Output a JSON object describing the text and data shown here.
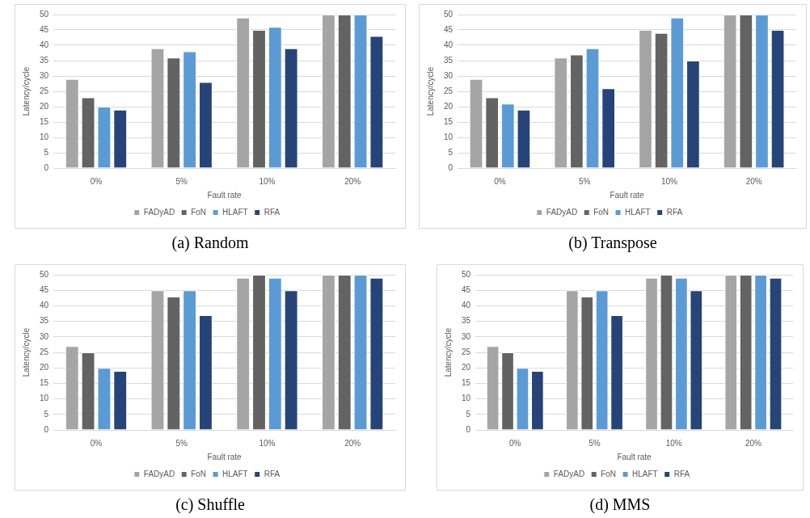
{
  "chart_data": [
    {
      "type": "bar",
      "xlabel": "Fault rate",
      "ylabel": "Latency/cycle",
      "categories": [
        "0%",
        "5%",
        "10%",
        "20%"
      ],
      "ylim": [
        0,
        50
      ],
      "yticks": [
        0,
        5,
        10,
        15,
        20,
        25,
        30,
        35,
        40,
        45,
        50
      ],
      "grid": "y",
      "legend": "bottom",
      "annotations": [
        "(a) Random"
      ],
      "series": [
        {
          "name": "FADyAD",
          "color": "#a5a5a5",
          "values": [
            29,
            39,
            49,
            50
          ]
        },
        {
          "name": "FoN",
          "color": "#636363",
          "values": [
            23,
            36,
            45,
            50
          ]
        },
        {
          "name": "HLAFT",
          "color": "#5b9bd5",
          "values": [
            20,
            38,
            46,
            50
          ]
        },
        {
          "name": "RFA",
          "color": "#264478",
          "values": [
            19,
            28,
            39,
            43
          ]
        }
      ]
    },
    {
      "type": "bar",
      "xlabel": "Fault rate",
      "ylabel": "Latency/cycle",
      "categories": [
        "0%",
        "5%",
        "10%",
        "20%"
      ],
      "ylim": [
        0,
        50
      ],
      "yticks": [
        0,
        5,
        10,
        15,
        20,
        25,
        30,
        35,
        40,
        45,
        50
      ],
      "grid": "y",
      "legend": "bottom",
      "annotations": [
        "(b) Transpose"
      ],
      "series": [
        {
          "name": "FADyAD",
          "color": "#a5a5a5",
          "values": [
            29,
            36,
            45,
            50
          ]
        },
        {
          "name": "FoN",
          "color": "#636363",
          "values": [
            23,
            37,
            44,
            50
          ]
        },
        {
          "name": "HLAFT",
          "color": "#5b9bd5",
          "values": [
            21,
            39,
            49,
            50
          ]
        },
        {
          "name": "RFA",
          "color": "#264478",
          "values": [
            19,
            26,
            35,
            45
          ]
        }
      ]
    },
    {
      "type": "bar",
      "xlabel": "Fault rate",
      "ylabel": "Latency/cycle",
      "categories": [
        "0%",
        "5%",
        "10%",
        "20%"
      ],
      "ylim": [
        0,
        50
      ],
      "yticks": [
        0,
        5,
        10,
        15,
        20,
        25,
        30,
        35,
        40,
        45,
        50
      ],
      "grid": "y",
      "legend": "bottom",
      "annotations": [
        "(c) Shuffle"
      ],
      "series": [
        {
          "name": "FADyAD",
          "color": "#a5a5a5",
          "values": [
            27,
            45,
            49,
            50
          ]
        },
        {
          "name": "FoN",
          "color": "#636363",
          "values": [
            25,
            43,
            50,
            50
          ]
        },
        {
          "name": "HLAFT",
          "color": "#5b9bd5",
          "values": [
            20,
            45,
            49,
            50
          ]
        },
        {
          "name": "RFA",
          "color": "#264478",
          "values": [
            19,
            37,
            45,
            49
          ]
        }
      ]
    },
    {
      "type": "bar",
      "xlabel": "Fault rate",
      "ylabel": "Latency/cycle",
      "categories": [
        "0%",
        "5%",
        "10%",
        "20%"
      ],
      "ylim": [
        0,
        50
      ],
      "yticks": [
        0,
        5,
        10,
        15,
        20,
        25,
        30,
        35,
        40,
        45,
        50
      ],
      "grid": "y",
      "legend": "bottom",
      "annotations": [
        "(d) MMS"
      ],
      "series": [
        {
          "name": "FADyAD",
          "color": "#a5a5a5",
          "values": [
            27,
            45,
            49,
            50
          ]
        },
        {
          "name": "FoN",
          "color": "#636363",
          "values": [
            25,
            43,
            50,
            50
          ]
        },
        {
          "name": "HLAFT",
          "color": "#5b9bd5",
          "values": [
            20,
            45,
            49,
            50
          ]
        },
        {
          "name": "RFA",
          "color": "#264478",
          "values": [
            19,
            37,
            45,
            49
          ]
        }
      ]
    }
  ]
}
